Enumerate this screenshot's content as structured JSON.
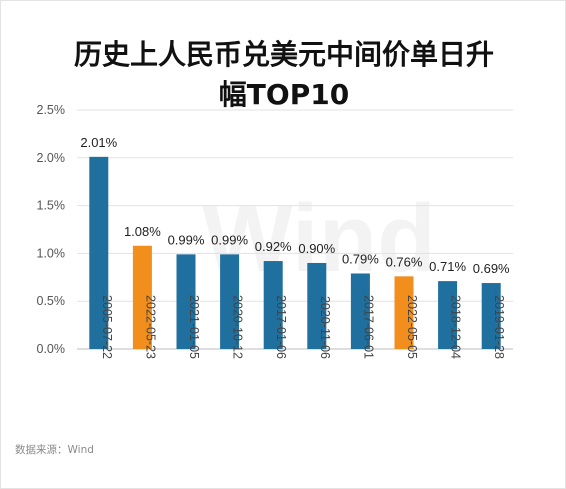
{
  "chart_data": {
    "type": "bar",
    "title_line1": "历史上人民币兑美元中间价单日升",
    "title_line2": "幅TOP10",
    "xlabel": "",
    "ylabel": "",
    "categories": [
      "2005-07-22",
      "2022-05-23",
      "2021-01-05",
      "2020-10-12",
      "2017-01-06",
      "2020-11-06",
      "2017-06-01",
      "2022-05-05",
      "2018-12-04",
      "2019-01-28"
    ],
    "values": [
      2.01,
      1.08,
      0.99,
      0.99,
      0.92,
      0.9,
      0.79,
      0.76,
      0.71,
      0.69
    ],
    "value_labels": [
      "2.01%",
      "1.08%",
      "0.99%",
      "0.99%",
      "0.92%",
      "0.90%",
      "0.79%",
      "0.76%",
      "0.71%",
      "0.69%"
    ],
    "bar_colors": [
      "#1f6f9f",
      "#f28e1c",
      "#1f6f9f",
      "#1f6f9f",
      "#1f6f9f",
      "#1f6f9f",
      "#1f6f9f",
      "#f28e1c",
      "#1f6f9f",
      "#1f6f9f"
    ],
    "y_ticks": [
      0,
      0.5,
      1.0,
      1.5,
      2.0,
      2.5
    ],
    "y_tick_labels": [
      "0.0%",
      "0.5%",
      "1.0%",
      "1.5%",
      "2.0%",
      "2.5%"
    ],
    "ylim": [
      0,
      2.5
    ],
    "grid": true,
    "legend": "none",
    "watermark": "Wind",
    "source": "数据来源：Wind"
  }
}
